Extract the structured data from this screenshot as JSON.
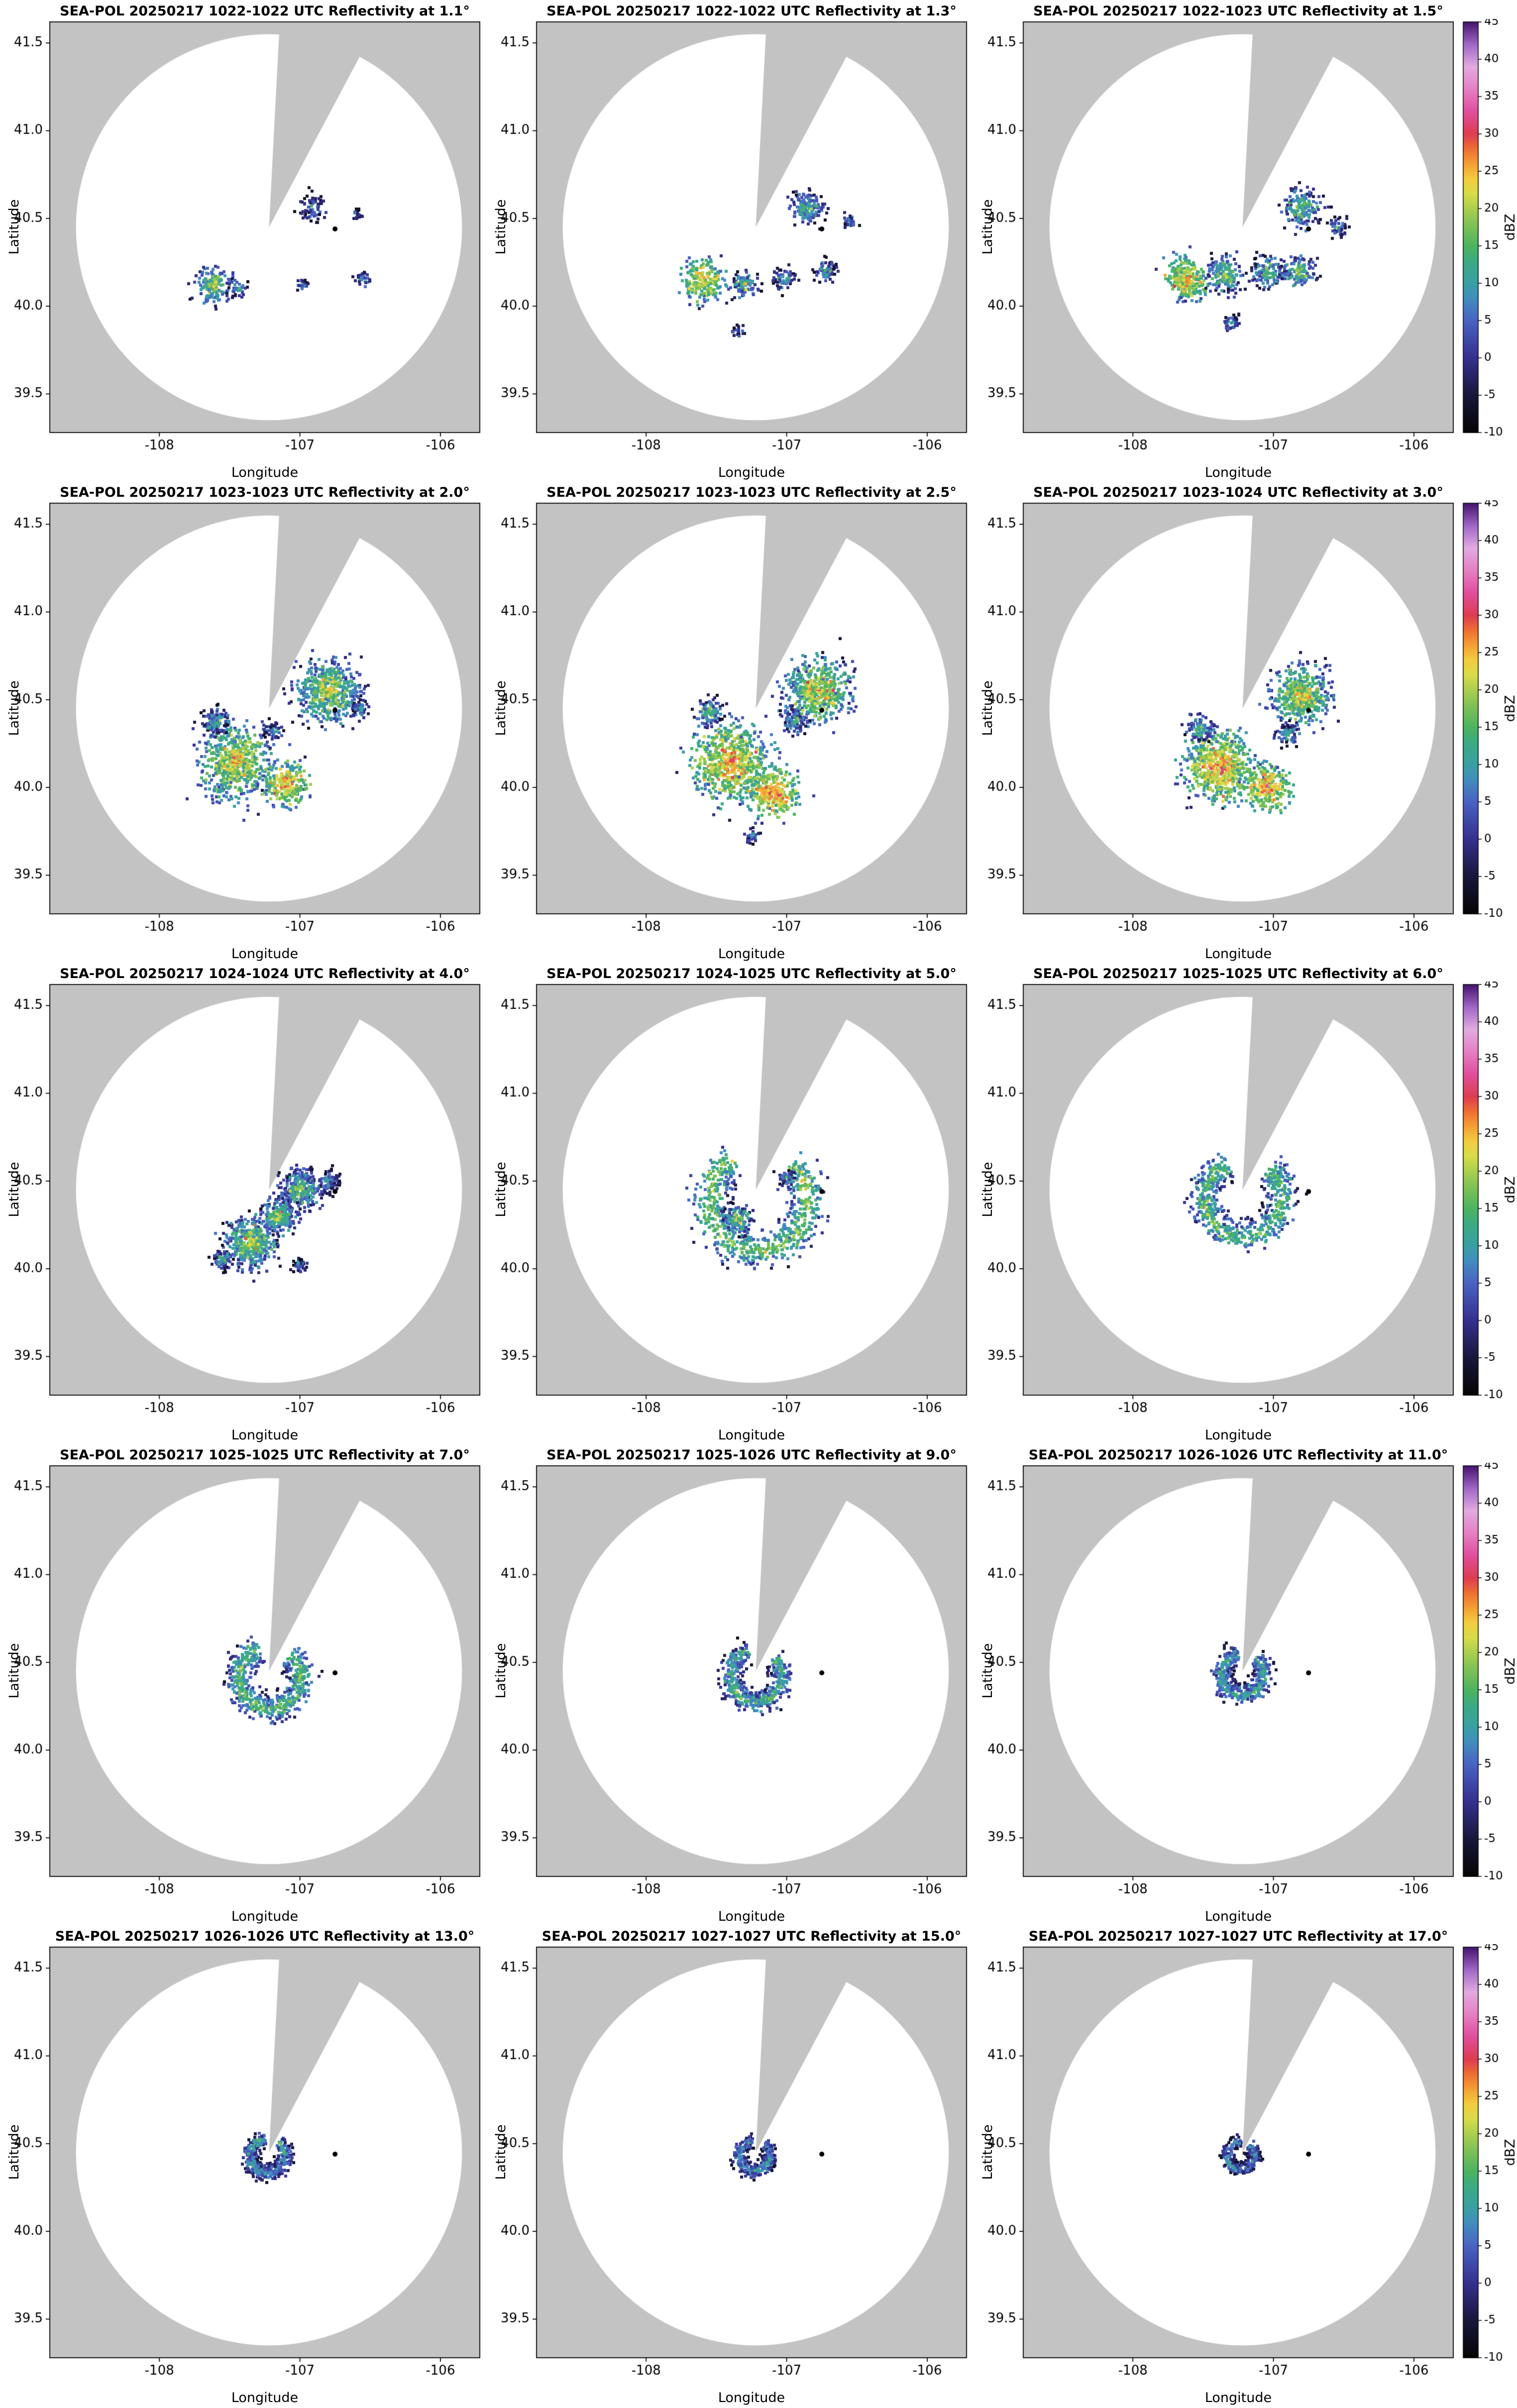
{
  "chart_data": {
    "type": "heatmap",
    "subtype": "radar_ppi_grid",
    "shared": {
      "xlabel": "Longitude",
      "ylabel": "Latitude",
      "lon_range": [
        -108.78,
        -105.72
      ],
      "lat_range": [
        39.28,
        41.62
      ],
      "x_ticks": [
        -108,
        -107,
        -106
      ],
      "x_tick_labels": [
        "-108",
        "-107",
        "-106"
      ],
      "y_ticks": [
        39.5,
        40.0,
        40.5,
        41.0,
        41.5
      ],
      "y_tick_labels": [
        "39.5",
        "40.0",
        "40.5",
        "41.0",
        "41.5"
      ],
      "radar": {
        "lon": -107.22,
        "lat": 40.45
      },
      "radius_deg": 1.1,
      "wedge": {
        "az_start_deg": 3,
        "az_end_deg": 28
      },
      "marker": {
        "lon": -106.75,
        "lat": 40.44
      },
      "colors": {
        "outside": "#c3c3c3",
        "inside": "#ffffff",
        "frame": "#000000",
        "marker": "#000000"
      },
      "cbar_label": "dBZ",
      "cbar_range": [
        -10,
        45
      ],
      "cbar_ticks": [
        -10,
        -5,
        0,
        5,
        10,
        15,
        20,
        25,
        30,
        35,
        40,
        45
      ],
      "cbar_tick_labels": [
        "-10",
        "-5",
        "0",
        "5",
        "10",
        "15",
        "20",
        "25",
        "30",
        "35",
        "40",
        "45"
      ],
      "colormap": [
        [
          -10,
          "#050505"
        ],
        [
          -5,
          "#18173a"
        ],
        [
          0,
          "#35308f"
        ],
        [
          5,
          "#4a62c4"
        ],
        [
          8,
          "#418ebf"
        ],
        [
          10,
          "#39a0a4"
        ],
        [
          13,
          "#3bab83"
        ],
        [
          15,
          "#4cb45f"
        ],
        [
          18,
          "#83c255"
        ],
        [
          20,
          "#abcf4e"
        ],
        [
          22,
          "#d8dc49"
        ],
        [
          24,
          "#f3cd3f"
        ],
        [
          26,
          "#f5a035"
        ],
        [
          28,
          "#ee6f32"
        ],
        [
          30,
          "#dd3d51"
        ],
        [
          33,
          "#df4f9c"
        ],
        [
          36,
          "#e77fc3"
        ],
        [
          39,
          "#e2abdf"
        ],
        [
          42,
          "#a167c7"
        ],
        [
          45,
          "#45156e"
        ]
      ]
    },
    "panels": [
      {
        "title": "SEA-POL 20250217 1022-1022 UTC Reflectivity at 1.1°",
        "time_utc": "1022-1022",
        "elevation_deg": 1.1,
        "seed": 101,
        "echoes": [
          {
            "kind": "cluster",
            "lon": -107.62,
            "lat": 40.12,
            "r": 0.1,
            "peak": 20,
            "n": 200
          },
          {
            "kind": "cluster",
            "lon": -107.44,
            "lat": 40.1,
            "r": 0.05,
            "peak": 13,
            "n": 55
          },
          {
            "kind": "cluster",
            "lon": -106.92,
            "lat": 40.56,
            "r": 0.09,
            "peak": 9,
            "n": 110
          },
          {
            "kind": "cluster",
            "lon": -106.6,
            "lat": 40.52,
            "r": 0.04,
            "peak": 7,
            "n": 30
          },
          {
            "kind": "cluster",
            "lon": -106.98,
            "lat": 40.12,
            "r": 0.04,
            "peak": 10,
            "n": 28
          },
          {
            "kind": "cluster",
            "lon": -106.55,
            "lat": 40.15,
            "r": 0.05,
            "peak": 11,
            "n": 36
          }
        ]
      },
      {
        "title": "SEA-POL 20250217 1022-1022 UTC Reflectivity at 1.3°",
        "time_utc": "1022-1022",
        "elevation_deg": 1.3,
        "seed": 102,
        "echoes": [
          {
            "kind": "cluster",
            "lon": -107.6,
            "lat": 40.15,
            "r": 0.12,
            "peak": 25,
            "n": 300
          },
          {
            "kind": "cluster",
            "lon": -107.3,
            "lat": 40.12,
            "r": 0.08,
            "peak": 15,
            "n": 120
          },
          {
            "kind": "cluster",
            "lon": -107.02,
            "lat": 40.15,
            "r": 0.07,
            "peak": 13,
            "n": 95
          },
          {
            "kind": "cluster",
            "lon": -106.85,
            "lat": 40.56,
            "r": 0.1,
            "peak": 15,
            "n": 190
          },
          {
            "kind": "cluster",
            "lon": -106.72,
            "lat": 40.2,
            "r": 0.07,
            "peak": 13,
            "n": 85
          },
          {
            "kind": "cluster",
            "lon": -106.55,
            "lat": 40.48,
            "r": 0.05,
            "peak": 9,
            "n": 45
          },
          {
            "kind": "cluster",
            "lon": -107.35,
            "lat": 39.85,
            "r": 0.05,
            "peak": 7,
            "n": 35
          }
        ]
      },
      {
        "title": "SEA-POL 20250217 1022-1023 UTC Reflectivity at 1.5°",
        "time_utc": "1022-1023",
        "elevation_deg": 1.5,
        "seed": 103,
        "echoes": [
          {
            "kind": "cluster",
            "lon": -107.62,
            "lat": 40.15,
            "r": 0.12,
            "peak": 26,
            "n": 330
          },
          {
            "kind": "cluster",
            "lon": -107.34,
            "lat": 40.18,
            "r": 0.1,
            "peak": 19,
            "n": 210
          },
          {
            "kind": "cluster",
            "lon": -107.04,
            "lat": 40.2,
            "r": 0.09,
            "peak": 17,
            "n": 170
          },
          {
            "kind": "cluster",
            "lon": -106.82,
            "lat": 40.2,
            "r": 0.09,
            "peak": 17,
            "n": 160
          },
          {
            "kind": "cluster",
            "lon": -106.8,
            "lat": 40.56,
            "r": 0.11,
            "peak": 17,
            "n": 230
          },
          {
            "kind": "cluster",
            "lon": -106.54,
            "lat": 40.45,
            "r": 0.06,
            "peak": 11,
            "n": 65
          },
          {
            "kind": "cluster",
            "lon": -107.3,
            "lat": 39.9,
            "r": 0.06,
            "peak": 9,
            "n": 55
          }
        ]
      },
      {
        "title": "SEA-POL 20250217 1023-1023 UTC Reflectivity at 2.0°",
        "time_utc": "1023-1023",
        "elevation_deg": 2.0,
        "seed": 104,
        "echoes": [
          {
            "kind": "cluster",
            "lon": -106.8,
            "lat": 40.55,
            "r": 0.18,
            "peak": 21,
            "n": 650
          },
          {
            "kind": "cluster",
            "lon": -107.45,
            "lat": 40.15,
            "r": 0.2,
            "peak": 24,
            "n": 800
          },
          {
            "kind": "cluster",
            "lon": -107.1,
            "lat": 40.02,
            "r": 0.12,
            "peak": 27,
            "n": 280
          },
          {
            "kind": "cluster",
            "lon": -107.6,
            "lat": 40.38,
            "r": 0.08,
            "peak": 14,
            "n": 140
          },
          {
            "kind": "cluster",
            "lon": -106.58,
            "lat": 40.45,
            "r": 0.06,
            "peak": 11,
            "n": 75
          },
          {
            "kind": "cluster",
            "lon": -107.18,
            "lat": 40.32,
            "r": 0.06,
            "peak": 11,
            "n": 60
          }
        ]
      },
      {
        "title": "SEA-POL 20250217 1023-1023 UTC Reflectivity at 2.5°",
        "time_utc": "1023-1023",
        "elevation_deg": 2.5,
        "seed": 105,
        "echoes": [
          {
            "kind": "cluster",
            "lon": -106.78,
            "lat": 40.55,
            "r": 0.18,
            "peak": 23,
            "n": 700
          },
          {
            "kind": "cluster",
            "lon": -107.4,
            "lat": 40.14,
            "r": 0.21,
            "peak": 27,
            "n": 880
          },
          {
            "kind": "cluster",
            "lon": -107.1,
            "lat": 39.97,
            "r": 0.14,
            "peak": 29,
            "n": 400
          },
          {
            "kind": "cluster",
            "lon": -107.55,
            "lat": 40.42,
            "r": 0.08,
            "peak": 15,
            "n": 130
          },
          {
            "kind": "cluster",
            "lon": -106.95,
            "lat": 40.38,
            "r": 0.08,
            "peak": 13,
            "n": 110
          },
          {
            "kind": "cluster",
            "lon": -107.25,
            "lat": 39.72,
            "r": 0.05,
            "peak": 11,
            "n": 45
          }
        ]
      },
      {
        "title": "SEA-POL 20250217 1023-1024 UTC Reflectivity at 3.0°",
        "time_utc": "1023-1024",
        "elevation_deg": 3.0,
        "seed": 106,
        "echoes": [
          {
            "kind": "cluster",
            "lon": -106.8,
            "lat": 40.52,
            "r": 0.16,
            "peak": 23,
            "n": 620
          },
          {
            "kind": "cluster",
            "lon": -107.38,
            "lat": 40.12,
            "r": 0.19,
            "peak": 27,
            "n": 760
          },
          {
            "kind": "cluster",
            "lon": -107.05,
            "lat": 40.0,
            "r": 0.13,
            "peak": 29,
            "n": 330
          },
          {
            "kind": "cluster",
            "lon": -107.52,
            "lat": 40.34,
            "r": 0.08,
            "peak": 15,
            "n": 120
          },
          {
            "kind": "cluster",
            "lon": -106.9,
            "lat": 40.3,
            "r": 0.07,
            "peak": 13,
            "n": 95
          }
        ]
      },
      {
        "title": "SEA-POL 20250217 1024-1024 UTC Reflectivity at 4.0°",
        "time_utc": "1024-1024",
        "elevation_deg": 4.0,
        "seed": 107,
        "echoes": [
          {
            "kind": "cluster",
            "lon": -107.35,
            "lat": 40.15,
            "r": 0.14,
            "peak": 21,
            "n": 520
          },
          {
            "kind": "cluster",
            "lon": -107.0,
            "lat": 40.45,
            "r": 0.12,
            "peak": 17,
            "n": 360
          },
          {
            "kind": "cluster",
            "lon": -107.15,
            "lat": 40.3,
            "r": 0.1,
            "peak": 19,
            "n": 260
          },
          {
            "kind": "cluster",
            "lon": -106.8,
            "lat": 40.5,
            "r": 0.07,
            "peak": 11,
            "n": 120
          },
          {
            "kind": "cluster",
            "lon": -107.55,
            "lat": 40.05,
            "r": 0.06,
            "peak": 13,
            "n": 90
          },
          {
            "kind": "cluster",
            "lon": -107.0,
            "lat": 40.02,
            "r": 0.05,
            "peak": 9,
            "n": 55
          }
        ]
      },
      {
        "title": "SEA-POL 20250217 1024-1025 UTC Reflectivity at 5.0°",
        "time_utc": "1024-1025",
        "elevation_deg": 5.0,
        "seed": 108,
        "echoes": [
          {
            "kind": "ring",
            "lon": -107.2,
            "lat": 40.38,
            "r0": 0.28,
            "w": 0.09,
            "peak": 17,
            "n": 900,
            "gap": [
              -30,
              40
            ]
          },
          {
            "kind": "cluster",
            "lon": -107.35,
            "lat": 40.28,
            "r": 0.08,
            "peak": 18,
            "n": 150
          },
          {
            "kind": "cluster",
            "lon": -107.0,
            "lat": 40.52,
            "r": 0.05,
            "peak": 11,
            "n": 60
          }
        ]
      },
      {
        "title": "SEA-POL 20250217 1025-1025 UTC Reflectivity at 6.0°",
        "time_utc": "1025-1025",
        "elevation_deg": 6.0,
        "seed": 109,
        "echoes": [
          {
            "kind": "ring",
            "lon": -107.21,
            "lat": 40.4,
            "r0": 0.22,
            "w": 0.075,
            "peak": 15,
            "n": 820,
            "gap": [
              -25,
              40
            ]
          }
        ]
      },
      {
        "title": "SEA-POL 20250217 1025-1025 UTC Reflectivity at 7.0°",
        "time_utc": "1025-1025",
        "elevation_deg": 7.0,
        "seed": 110,
        "echoes": [
          {
            "kind": "ring",
            "lon": -107.21,
            "lat": 40.41,
            "r0": 0.175,
            "w": 0.065,
            "peak": 15,
            "n": 740,
            "gap": [
              -20,
              40
            ]
          }
        ]
      },
      {
        "title": "SEA-POL 20250217 1025-1026 UTC Reflectivity at 9.0°",
        "time_utc": "1025-1026",
        "elevation_deg": 9.0,
        "seed": 111,
        "echoes": [
          {
            "kind": "ring",
            "lon": -107.22,
            "lat": 40.42,
            "r0": 0.145,
            "w": 0.055,
            "peak": 13,
            "n": 640,
            "gap": [
              -15,
              40
            ]
          }
        ]
      },
      {
        "title": "SEA-POL 20250217 1026-1026 UTC Reflectivity at 11.0°",
        "time_utc": "1026-1026",
        "elevation_deg": 11.0,
        "seed": 112,
        "echoes": [
          {
            "kind": "ring",
            "lon": -107.22,
            "lat": 40.43,
            "r0": 0.12,
            "w": 0.05,
            "peak": 12,
            "n": 560,
            "gap": [
              -12,
              40
            ]
          }
        ]
      },
      {
        "title": "SEA-POL 20250217 1026-1026 UTC Reflectivity at 13.0°",
        "time_utc": "1026-1026",
        "elevation_deg": 13.0,
        "seed": 113,
        "echoes": [
          {
            "kind": "ring",
            "lon": -107.23,
            "lat": 40.43,
            "r0": 0.1,
            "w": 0.045,
            "peak": 10,
            "n": 470,
            "gap": [
              -8,
              40
            ]
          }
        ]
      },
      {
        "title": "SEA-POL 20250217 1027-1027 UTC Reflectivity at 15.0°",
        "time_utc": "1027-1027",
        "elevation_deg": 15.0,
        "seed": 114,
        "echoes": [
          {
            "kind": "ring",
            "lon": -107.23,
            "lat": 40.43,
            "r0": 0.088,
            "w": 0.04,
            "peak": 9,
            "n": 420,
            "gap": [
              -4,
              40
            ]
          }
        ]
      },
      {
        "title": "SEA-POL 20250217 1027-1027 UTC Reflectivity at 17.0°",
        "time_utc": "1027-1027",
        "elevation_deg": 17.0,
        "seed": 115,
        "echoes": [
          {
            "kind": "ring",
            "lon": -107.23,
            "lat": 40.43,
            "r0": 0.078,
            "w": 0.036,
            "peak": 8,
            "n": 380,
            "gap": [
              0,
              40
            ]
          }
        ]
      }
    ]
  }
}
